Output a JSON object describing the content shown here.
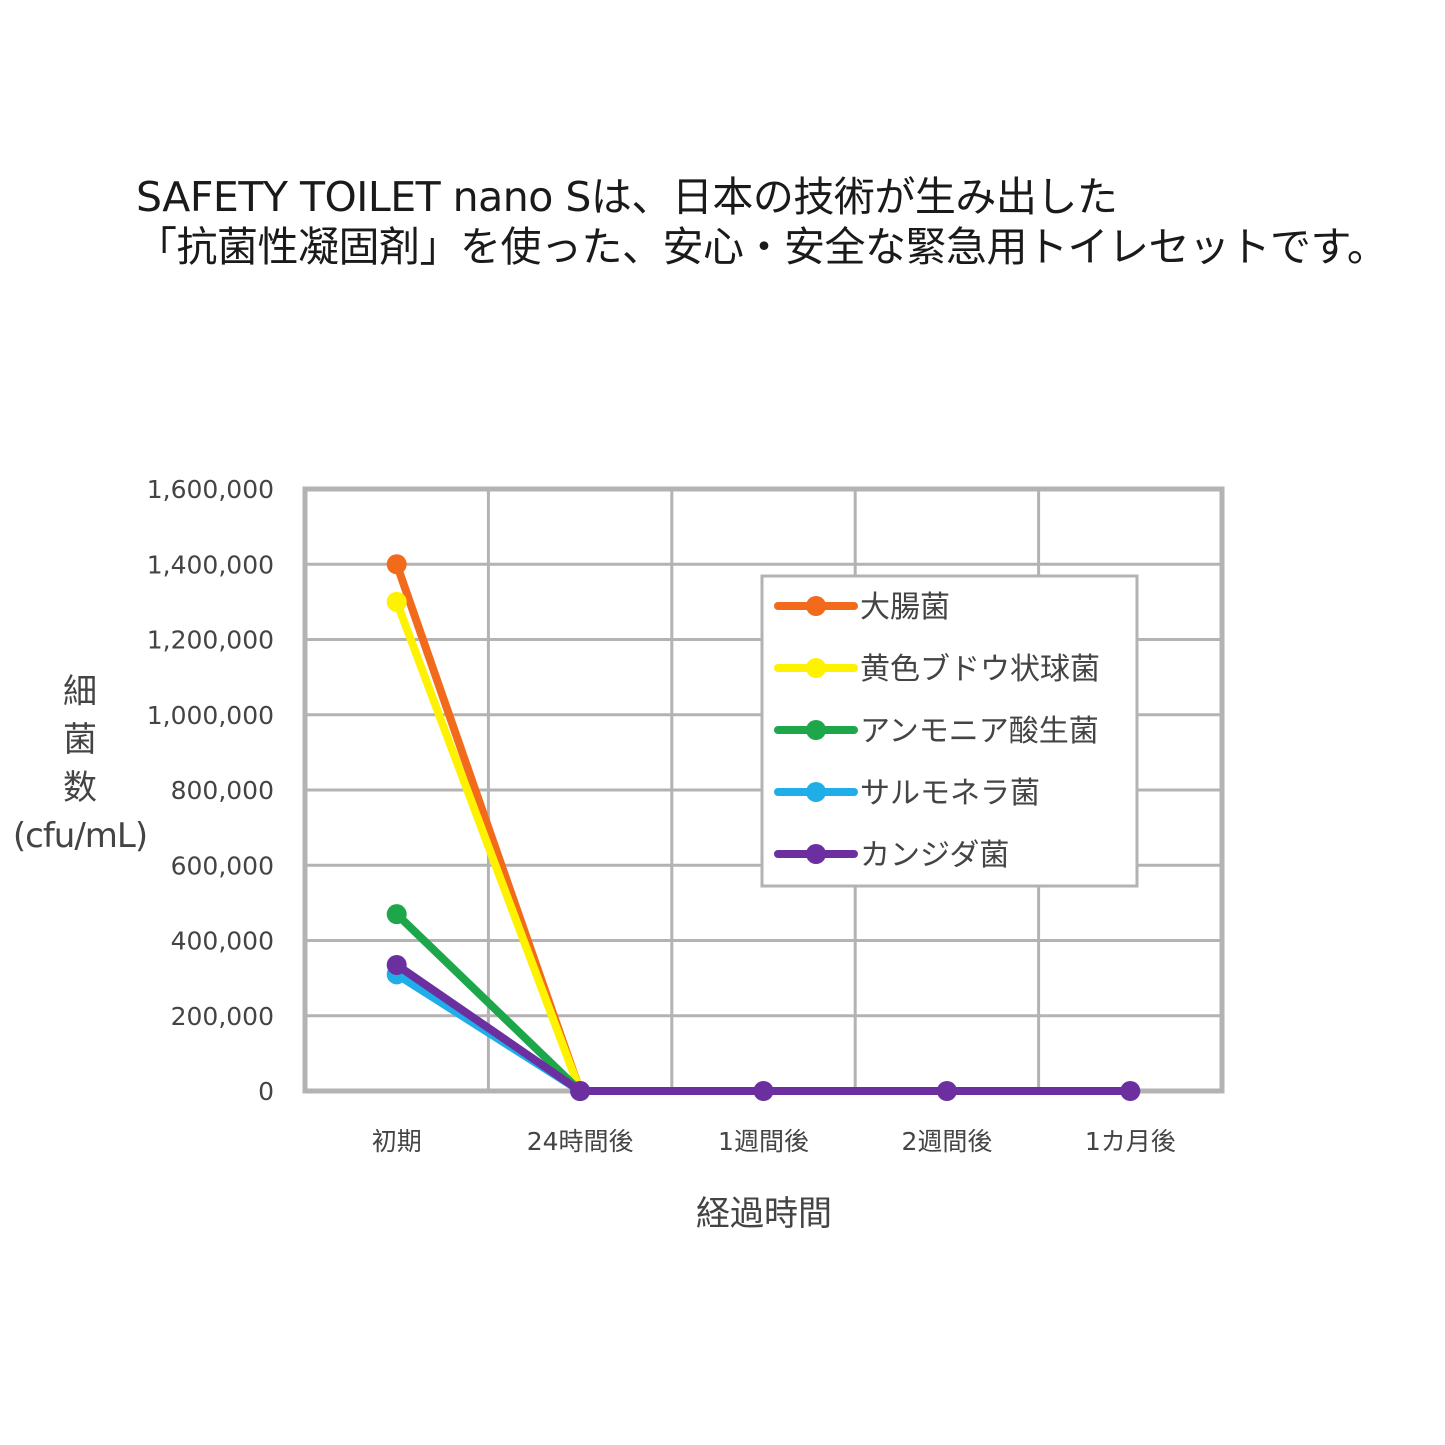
{
  "headline": {
    "line1": "SAFETY TOILET nano Sは、日本の技術が生み出した",
    "line2": "「抗菌性凝固剤」を使った、安心・安全な緊急用トイレセットです。"
  },
  "chart_data": {
    "type": "line",
    "categories": [
      "初期",
      "24時間後",
      "1週間後",
      "2週間後",
      "1カ月後"
    ],
    "xlabel": "経過時間",
    "ylabel_chars": [
      "細",
      "菌",
      "数"
    ],
    "ylabel_unit": "(cfu/mL)",
    "ylim": [
      0,
      1600000
    ],
    "yticks": [
      0,
      200000,
      400000,
      600000,
      800000,
      1000000,
      1200000,
      1400000,
      1600000
    ],
    "ytick_labels": [
      "0",
      "200,000",
      "400,000",
      "600,000",
      "800,000",
      "1,000,000",
      "1,200,000",
      "1,400,000",
      "1,600,000"
    ],
    "grid": true,
    "legend_position": "top-right",
    "series": [
      {
        "name": "大腸菌",
        "color": "#F26B1D",
        "values": [
          1400000,
          0,
          null,
          null,
          null
        ]
      },
      {
        "name": "黄色ブドウ状球菌",
        "color": "#FFF200",
        "values": [
          1300000,
          0,
          null,
          null,
          null
        ]
      },
      {
        "name": "アンモニア酸生菌",
        "color": "#1EA64A",
        "values": [
          470000,
          0,
          null,
          null,
          null
        ]
      },
      {
        "name": "サルモネラ菌",
        "color": "#1FAEE8",
        "values": [
          310000,
          0,
          null,
          null,
          null
        ]
      },
      {
        "name": "カンジダ菌",
        "color": "#6B2FA0",
        "values": [
          335000,
          0,
          0,
          0,
          0
        ]
      }
    ]
  }
}
